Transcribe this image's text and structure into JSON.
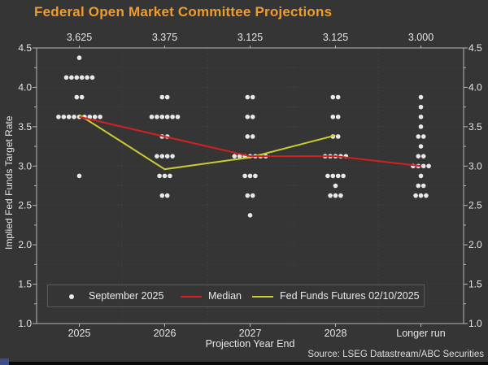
{
  "title": "Federal Open Market Committee Projections",
  "source": "Source: LSEG Datastream/ABC Securities",
  "colors": {
    "background": "#353535",
    "title": "#f09c2c",
    "median_line": "#d42020",
    "futures_line": "#cbcb34",
    "dot": "#e8e8e8",
    "axis": "#b8b8b8",
    "grid": "#454545",
    "text": "#e6e6e6",
    "bottom_bar": "#0b0b0b",
    "corner_square": "#3c4f86"
  },
  "chart_data": {
    "type": "scatter",
    "title": "Federal Open Market Committee Projections",
    "xlabel": "Projection Year End",
    "ylabel": "Implied Fed Funds Target Rate",
    "ylim": [
      1.0,
      4.5
    ],
    "y_major_ticks": [
      1.0,
      1.5,
      2.0,
      2.5,
      3.0,
      3.5,
      4.0,
      4.5
    ],
    "y_minor_step": 0.25,
    "grid": "dotted horizontal every 0.25, faint vertical column separators",
    "categories": [
      "2025",
      "2026",
      "2027",
      "2028",
      "Longer run"
    ],
    "top_labels": [
      "3.625",
      "3.375",
      "3.125",
      "3.125",
      "3.000"
    ],
    "dot_series_name": "September 2025",
    "dots": [
      {
        "category": "2025",
        "points": [
          {
            "value": 4.375,
            "count": 1
          },
          {
            "value": 4.125,
            "count": 6
          },
          {
            "value": 3.875,
            "count": 2
          },
          {
            "value": 3.625,
            "count": 9
          },
          {
            "value": 2.875,
            "count": 1
          }
        ]
      },
      {
        "category": "2026",
        "points": [
          {
            "value": 3.875,
            "count": 2
          },
          {
            "value": 3.625,
            "count": 6
          },
          {
            "value": 3.375,
            "count": 2
          },
          {
            "value": 3.125,
            "count": 4
          },
          {
            "value": 2.875,
            "count": 3
          },
          {
            "value": 2.625,
            "count": 2
          }
        ]
      },
      {
        "category": "2027",
        "points": [
          {
            "value": 3.875,
            "count": 2
          },
          {
            "value": 3.625,
            "count": 2
          },
          {
            "value": 3.375,
            "count": 2
          },
          {
            "value": 3.125,
            "count": 7
          },
          {
            "value": 2.875,
            "count": 3
          },
          {
            "value": 2.625,
            "count": 2
          },
          {
            "value": 2.375,
            "count": 1
          }
        ]
      },
      {
        "category": "2028",
        "points": [
          {
            "value": 3.875,
            "count": 2
          },
          {
            "value": 3.625,
            "count": 2
          },
          {
            "value": 3.375,
            "count": 2
          },
          {
            "value": 3.125,
            "count": 5
          },
          {
            "value": 2.875,
            "count": 4
          },
          {
            "value": 2.75,
            "count": 1
          },
          {
            "value": 2.625,
            "count": 3
          }
        ]
      },
      {
        "category": "Longer run",
        "points": [
          {
            "value": 3.875,
            "count": 1
          },
          {
            "value": 3.75,
            "count": 1
          },
          {
            "value": 3.625,
            "count": 1
          },
          {
            "value": 3.5,
            "count": 1
          },
          {
            "value": 3.375,
            "count": 2
          },
          {
            "value": 3.25,
            "count": 1
          },
          {
            "value": 3.125,
            "count": 2
          },
          {
            "value": 3.0,
            "count": 4
          },
          {
            "value": 2.875,
            "count": 1
          },
          {
            "value": 2.75,
            "count": 2
          },
          {
            "value": 2.625,
            "count": 3
          }
        ]
      }
    ],
    "series": [
      {
        "name": "Median",
        "color_key": "median_line",
        "x": [
          "2025",
          "2026",
          "2027",
          "2028",
          "Longer run"
        ],
        "values": [
          3.625,
          3.375,
          3.125,
          3.125,
          3.0
        ]
      },
      {
        "name": "Fed Funds Futures 02/10/2025",
        "color_key": "futures_line",
        "x": [
          "2025",
          "2026",
          "2027",
          "2028"
        ],
        "values": [
          3.65,
          2.96,
          3.11,
          3.39
        ]
      }
    ],
    "legend": {
      "position": "bottom-inside",
      "items": [
        {
          "label": "September 2025",
          "marker": "dot"
        },
        {
          "label": "Median",
          "marker": "line",
          "color": "#d42020"
        },
        {
          "label": "Fed Funds Futures 02/10/2025",
          "marker": "line",
          "color": "#cbcb34"
        }
      ]
    }
  }
}
